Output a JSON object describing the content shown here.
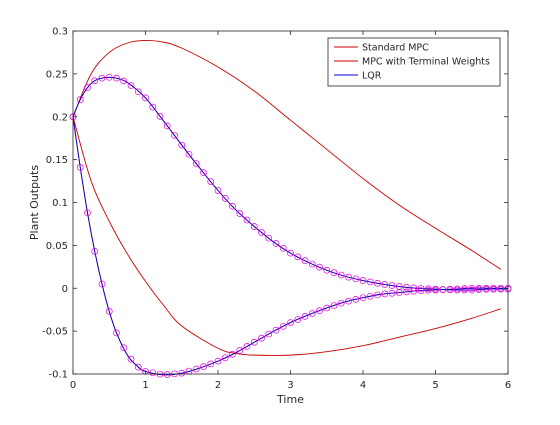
{
  "chart_data": {
    "type": "line",
    "title": "",
    "xlabel": "Time",
    "ylabel": "Plant Outputs",
    "xlim": [
      0,
      6
    ],
    "ylim": [
      -0.1,
      0.3
    ],
    "x_ticks": [
      0,
      1,
      2,
      3,
      4,
      5,
      6
    ],
    "x_tick_labels": [
      "0",
      "1",
      "2",
      "3",
      "4",
      "5",
      "6"
    ],
    "y_ticks": [
      -0.1,
      -0.05,
      0,
      0.05,
      0.1,
      0.15,
      0.2,
      0.25,
      0.3
    ],
    "y_tick_labels": [
      "-0.1",
      "-0.05",
      "0",
      "0.05",
      "0.1",
      "0.15",
      "0.2",
      "0.25",
      "0.3"
    ],
    "grid": false,
    "legend_position": "top-right",
    "legend": [
      {
        "label": "Standard MPC",
        "color": "#cc0000"
      },
      {
        "label": "MPC with Terminal Weights",
        "color": "#cc0000"
      },
      {
        "label": "LQR",
        "color": "#0000cc"
      }
    ],
    "marker_color": "#e000e0",
    "series": [
      {
        "label": "Standard MPC",
        "color": "#cc0000",
        "x": [
          0,
          0.25,
          0.5,
          0.75,
          1.0,
          1.25,
          1.5,
          2.0,
          2.5,
          3.0,
          3.5,
          4.0,
          4.5,
          5.0,
          5.5,
          5.9
        ],
        "y": [
          0.2,
          0.25,
          0.275,
          0.286,
          0.289,
          0.287,
          0.28,
          0.258,
          0.23,
          0.196,
          0.162,
          0.128,
          0.097,
          0.07,
          0.044,
          0.022
        ]
      },
      {
        "label": "Standard MPC",
        "color": "#cc0000",
        "x": [
          0,
          0.25,
          0.5,
          0.75,
          1.0,
          1.25,
          1.5,
          2.0,
          2.25,
          2.5,
          3.0,
          3.5,
          4.0,
          4.5,
          5.0,
          5.5,
          5.9
        ],
        "y": [
          0.2,
          0.125,
          0.078,
          0.04,
          0.008,
          -0.02,
          -0.044,
          -0.07,
          -0.076,
          -0.078,
          -0.078,
          -0.074,
          -0.067,
          -0.057,
          -0.047,
          -0.035,
          -0.024
        ]
      },
      {
        "label": "MPC with Terminal Weights",
        "color": "#cc0000",
        "x": [
          0,
          0.1,
          0.2,
          0.3,
          0.4,
          0.5,
          0.6,
          0.75,
          1.0,
          1.25,
          1.5,
          1.75,
          2.0,
          2.25,
          2.5,
          2.75,
          3.0,
          3.25,
          3.5,
          3.75,
          4.0,
          4.25,
          4.5,
          4.75,
          5.0,
          5.25,
          5.5,
          5.75,
          6.0
        ],
        "y": [
          0.2,
          0.22,
          0.234,
          0.242,
          0.245,
          0.246,
          0.245,
          0.24,
          0.222,
          0.195,
          0.167,
          0.14,
          0.114,
          0.091,
          0.072,
          0.055,
          0.041,
          0.03,
          0.021,
          0.014,
          0.009,
          0.005,
          0.002,
          0.0,
          -0.001,
          -0.002,
          -0.002,
          -0.001,
          -0.001
        ]
      },
      {
        "label": "MPC with Terminal Weights",
        "color": "#cc0000",
        "x": [
          0,
          0.1,
          0.2,
          0.3,
          0.4,
          0.5,
          0.6,
          0.75,
          0.9,
          1.0,
          1.25,
          1.5,
          1.75,
          2.0,
          2.25,
          2.5,
          2.75,
          3.0,
          3.25,
          3.5,
          3.75,
          4.0,
          4.25,
          4.5,
          4.75,
          5.0,
          5.25,
          5.5,
          5.75,
          6.0
        ],
        "y": [
          0.2,
          0.141,
          0.088,
          0.043,
          0.005,
          -0.027,
          -0.052,
          -0.078,
          -0.092,
          -0.097,
          -0.101,
          -0.099,
          -0.093,
          -0.085,
          -0.075,
          -0.063,
          -0.051,
          -0.04,
          -0.031,
          -0.023,
          -0.016,
          -0.011,
          -0.007,
          -0.005,
          -0.003,
          -0.002,
          -0.001,
          0.0,
          0.0,
          0.0
        ]
      },
      {
        "label": "LQR",
        "color": "#0000cc",
        "x": [
          0,
          0.1,
          0.2,
          0.3,
          0.4,
          0.5,
          0.6,
          0.75,
          1.0,
          1.25,
          1.5,
          1.75,
          2.0,
          2.25,
          2.5,
          2.75,
          3.0,
          3.25,
          3.5,
          3.75,
          4.0,
          4.25,
          4.5,
          4.75,
          5.0,
          5.25,
          5.5,
          5.75,
          6.0
        ],
        "y": [
          0.2,
          0.22,
          0.234,
          0.242,
          0.245,
          0.246,
          0.245,
          0.24,
          0.222,
          0.195,
          0.167,
          0.14,
          0.114,
          0.091,
          0.072,
          0.055,
          0.041,
          0.03,
          0.021,
          0.014,
          0.009,
          0.005,
          0.002,
          0.0,
          -0.001,
          -0.002,
          -0.002,
          -0.001,
          -0.001
        ]
      },
      {
        "label": "LQR",
        "color": "#0000cc",
        "x": [
          0,
          0.1,
          0.2,
          0.3,
          0.4,
          0.5,
          0.6,
          0.75,
          0.9,
          1.0,
          1.25,
          1.5,
          1.75,
          2.0,
          2.25,
          2.5,
          2.75,
          3.0,
          3.25,
          3.5,
          3.75,
          4.0,
          4.25,
          4.5,
          4.75,
          5.0,
          5.25,
          5.5,
          5.75,
          6.0
        ],
        "y": [
          0.2,
          0.141,
          0.088,
          0.043,
          0.005,
          -0.027,
          -0.052,
          -0.078,
          -0.092,
          -0.097,
          -0.101,
          -0.099,
          -0.093,
          -0.085,
          -0.075,
          -0.063,
          -0.051,
          -0.04,
          -0.031,
          -0.023,
          -0.016,
          -0.011,
          -0.007,
          -0.005,
          -0.003,
          -0.002,
          -0.001,
          0.0,
          0.0,
          0.0
        ]
      }
    ]
  }
}
